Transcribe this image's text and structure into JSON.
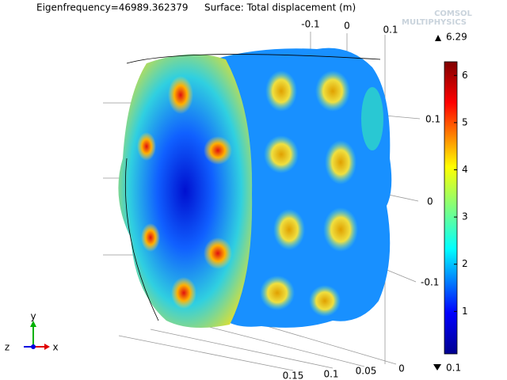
{
  "header": {
    "title": "Eigenfrequency=46989.362379",
    "subtitle": "Surface: Total displacement (m)"
  },
  "logo": {
    "line1": "COMSOL",
    "line2": "MULTIPHYSICS"
  },
  "axes": {
    "top_ticks": [
      -0.1,
      0,
      0.1
    ],
    "right_ticks": [
      0.1,
      0,
      -0.1
    ],
    "bottom_ticks": [
      0.15,
      0.1,
      0.05,
      0
    ]
  },
  "triad": {
    "x": "x",
    "y": "y",
    "z": "z"
  },
  "colorbar": {
    "max": 6.29,
    "min": 0.1,
    "ticks": [
      1,
      2,
      3,
      4,
      5,
      6
    ]
  }
}
